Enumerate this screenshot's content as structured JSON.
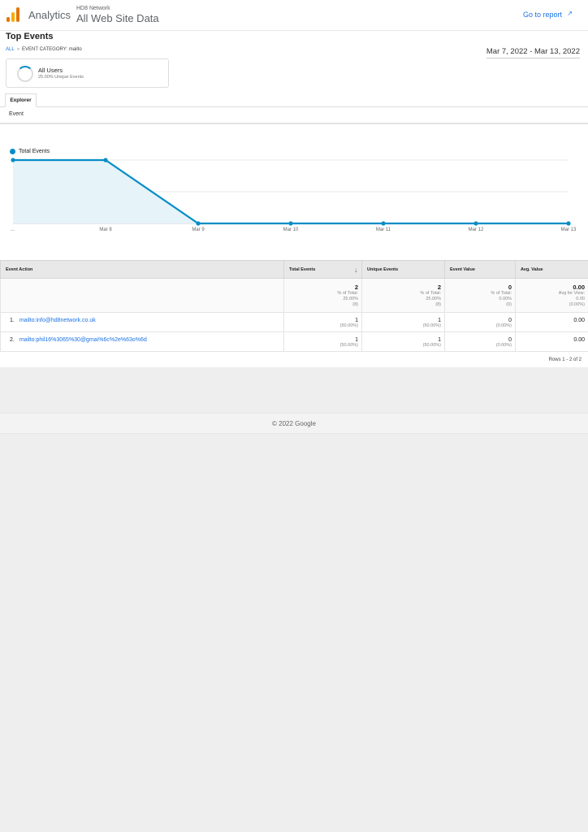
{
  "header": {
    "product": "Analytics",
    "account": "HD8 Network",
    "view": "All Web Site Data",
    "goto_report": "Go to report",
    "goto_icon": "↗"
  },
  "report": {
    "title": "Top Events",
    "breadcrumb": {
      "all": "ALL",
      "separator": "»",
      "current": "EVENT CATEGORY: mailto"
    },
    "date_range": "Mar 7, 2022 - Mar 13, 2022"
  },
  "segment": {
    "name": "All Users",
    "sub": "25.00% Unique Events"
  },
  "tabs": {
    "explorer": "Explorer",
    "subtab": "Event"
  },
  "chart_data": {
    "type": "area",
    "series": [
      {
        "name": "Total Events",
        "values": [
          1,
          1,
          0,
          0,
          0,
          0,
          0
        ]
      }
    ],
    "categories": [
      "Mar 7",
      "Mar 8",
      "Mar 9",
      "Mar 10",
      "Mar 11",
      "Mar 12",
      "Mar 13"
    ],
    "x_tick_labels": [
      "...",
      "Mar 8",
      "Mar 9",
      "Mar 10",
      "Mar 11",
      "Mar 12",
      "Mar 13"
    ],
    "y_ticks": [
      "1",
      "0.5"
    ],
    "ylim": [
      0,
      1
    ],
    "legend": "top-left",
    "grid": true,
    "color": "#058dc7",
    "fill": "#e6f3f9"
  },
  "table": {
    "columns": [
      "Event Action",
      "Total Events",
      "Unique Events",
      "Event Value",
      "Avg. Value"
    ],
    "sort_icon": "↓",
    "totals": {
      "total_events": {
        "value": "2",
        "label": "% of Total:",
        "pct": "25.00%",
        "total": "(8)"
      },
      "unique_events": {
        "value": "2",
        "label": "% of Total:",
        "pct": "25.00%",
        "total": "(8)"
      },
      "event_value": {
        "value": "0",
        "label": "% of Total:",
        "pct": "0.00%",
        "total": "(0)"
      },
      "avg_value": {
        "value": "0.00",
        "label": "Avg for View:",
        "pct": "0.00",
        "total": "(0.00%)"
      }
    },
    "rows": [
      {
        "num": "1.",
        "action": "mailto:info@hd8network.co.uk",
        "total": "1",
        "total_pct": "(50.00%)",
        "unique": "1",
        "unique_pct": "(50.00%)",
        "value": "0",
        "value_pct": "(0.00%)",
        "avg": "0.00"
      },
      {
        "num": "2.",
        "action": "mailto:phil16%3065%30@gmai%6c%2e%63o%6d",
        "total": "1",
        "total_pct": "(50.00%)",
        "unique": "1",
        "unique_pct": "(50.00%)",
        "value": "0",
        "value_pct": "(0.00%)",
        "avg": "0.00"
      }
    ],
    "rows_info": "Rows 1 - 2 of 2"
  },
  "footer": {
    "copyright": "© 2022 Google"
  }
}
